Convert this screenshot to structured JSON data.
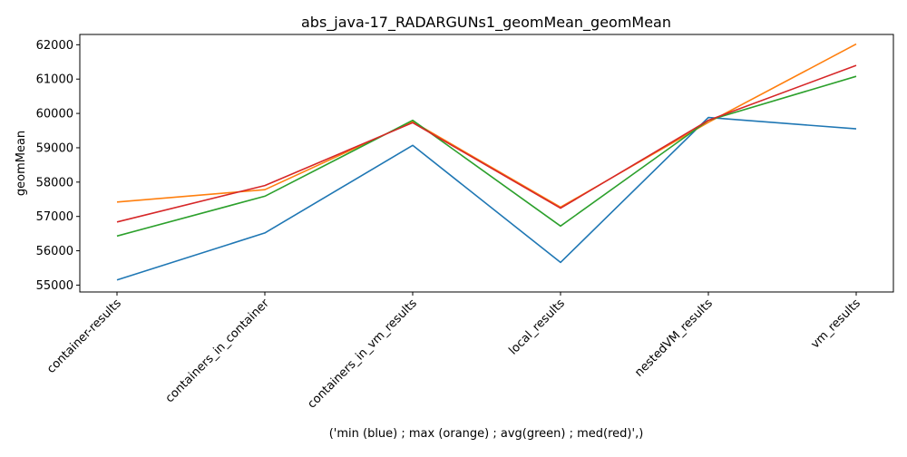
{
  "chart_data": {
    "type": "line",
    "title": "abs_java-17_RADARGUNs1_geomMean_geomMean",
    "xlabel": "('min (blue) ; max (orange) ; avg(green) ; med(red)',)",
    "ylabel": "geomMean",
    "categories": [
      "container-results",
      "containers_in_container",
      "containers_in_vm_results",
      "local_results",
      "nestedVM_results",
      "vm_results"
    ],
    "ylim": [
      54800,
      62300
    ],
    "yticks": [
      55000,
      56000,
      57000,
      58000,
      59000,
      60000,
      61000,
      62000
    ],
    "ytick_labels": [
      "55000",
      "56000",
      "57000",
      "58000",
      "59000",
      "60000",
      "61000",
      "62000"
    ],
    "grid": false,
    "series": [
      {
        "color": "#1f77b4",
        "values": [
          55150,
          56520,
          59070,
          55660,
          59880,
          59550
        ]
      },
      {
        "color": "#ff7f0e",
        "values": [
          57420,
          57780,
          59760,
          57270,
          59740,
          62020
        ]
      },
      {
        "color": "#2ca02c",
        "values": [
          56430,
          57590,
          59800,
          56720,
          59800,
          61080
        ]
      },
      {
        "color": "#d62728",
        "values": [
          56840,
          57900,
          59730,
          57240,
          59800,
          61400
        ]
      }
    ]
  }
}
